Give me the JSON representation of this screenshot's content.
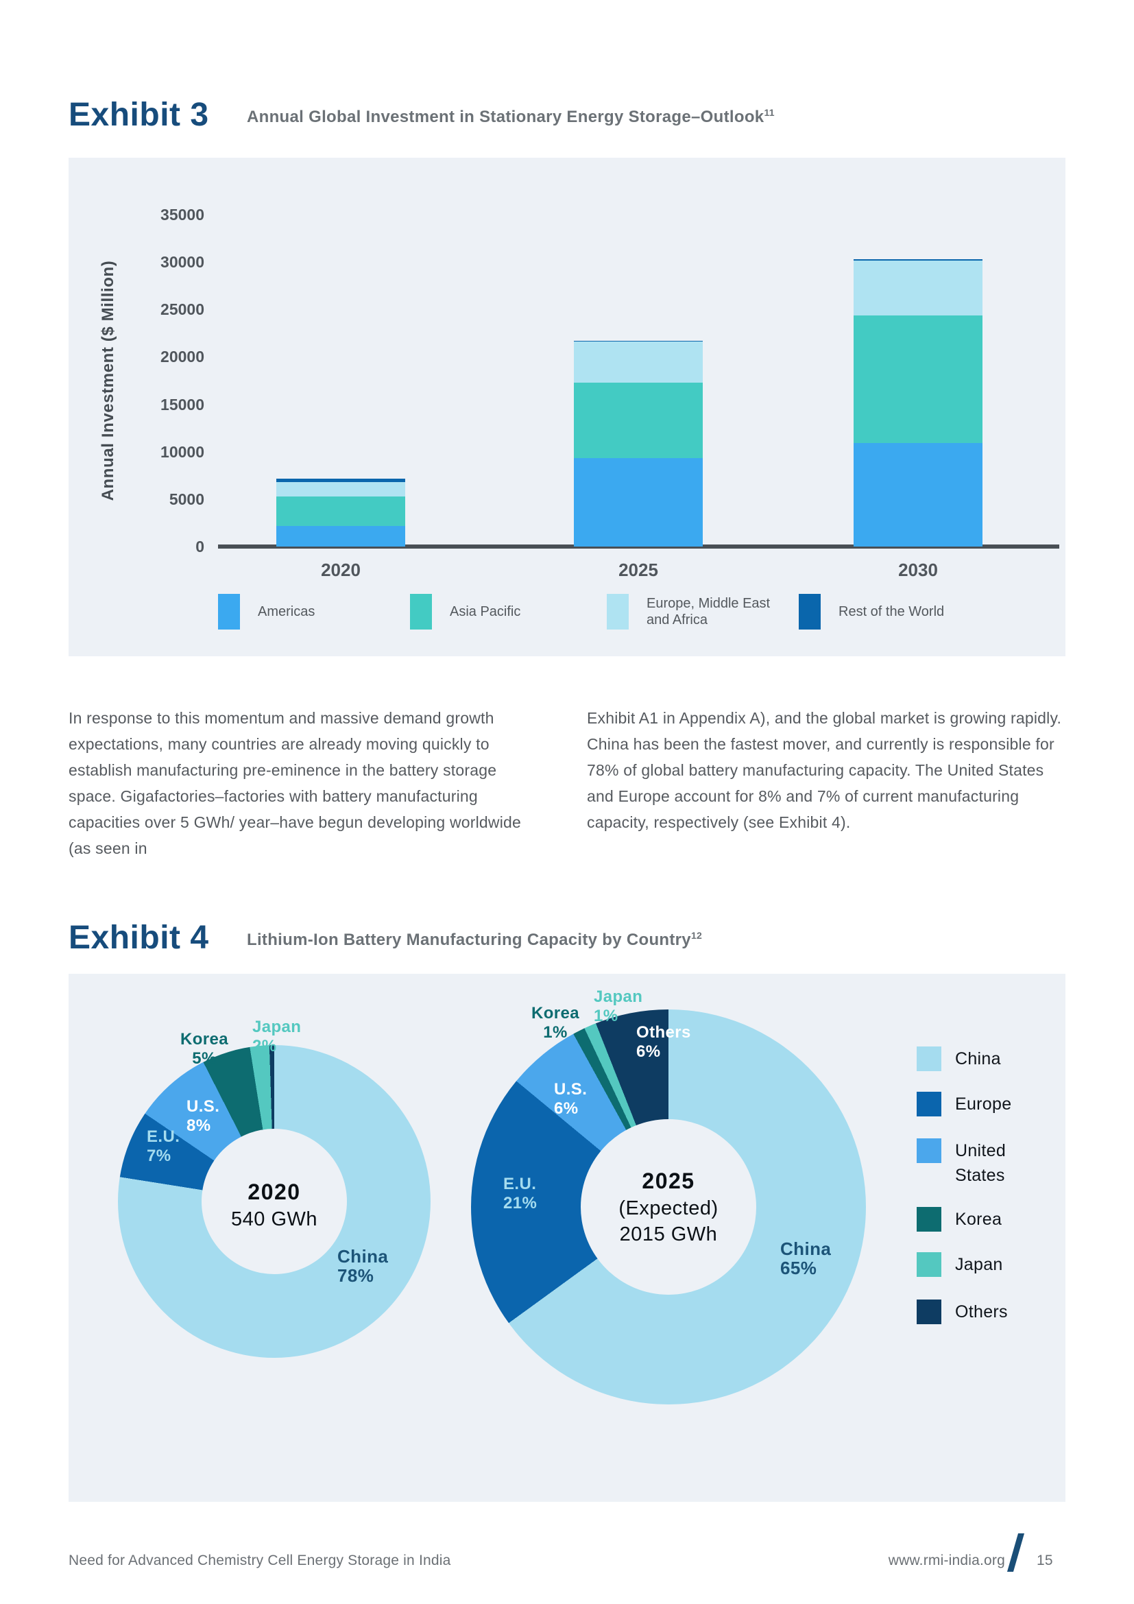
{
  "exhibit3": {
    "label": "Exhibit 3",
    "title": "Annual Global Investment in Stationary Energy Storage–Outlook",
    "footnote_sup": "11"
  },
  "exhibit4": {
    "label": "Exhibit 4",
    "title": "Lithium-Ion Battery Manufacturing Capacity by Country",
    "footnote_sup": "12"
  },
  "body": {
    "col1": "In response to this momentum and massive demand growth expectations, many countries are already moving quickly to establish manufacturing pre-eminence in the battery storage space. Gigafactories–factories with battery manufacturing capacities over 5 GWh/ year–have begun developing worldwide (as seen in",
    "col2": "Exhibit A1 in Appendix A), and the global market is growing rapidly. China has been the fastest mover, and currently is responsible for 78% of global battery manufacturing capacity. The United States and Europe account for 8% and 7% of current manufacturing capacity, respectively (see Exhibit 4)."
  },
  "footer": {
    "left": "Need for Advanced Chemistry Cell Energy Storage in India",
    "site": "www.rmi-india.org",
    "page": "15"
  },
  "chart_data": [
    {
      "type": "bar",
      "stacked": true,
      "title": "Annual Global Investment in Stationary Energy Storage–Outlook",
      "ylabel": "Annual Investment ($ Million)",
      "categories": [
        "2020",
        "2025",
        "2030"
      ],
      "series": [
        {
          "name": "Americas",
          "legend_lines": "Americas",
          "color": "#3BA9F0",
          "values": [
            2150,
            9330,
            10920
          ]
        },
        {
          "name": "Asia Pacific",
          "legend_lines": "Asia Pacific",
          "color": "#43CBC3",
          "values": [
            3150,
            7950,
            13450
          ]
        },
        {
          "name": "Europe, Middle East and Africa",
          "legend_lines": "Europe, Middle East\nand Africa",
          "color": "#AFE3F2",
          "values": [
            1500,
            4320,
            5780
          ]
        },
        {
          "name": "Rest of the World",
          "legend_lines": "Rest of the World",
          "color": "#0A66AC",
          "values": [
            330,
            100,
            150
          ]
        }
      ],
      "ylim": [
        0,
        35000
      ],
      "yticks": [
        0,
        5000,
        10000,
        15000,
        20000,
        25000,
        30000,
        35000
      ],
      "grid": false,
      "legend_position": "bottom"
    },
    {
      "type": "pie",
      "title": "Lithium-Ion Battery Manufacturing Capacity by Country",
      "donuts": [
        {
          "center": [
            "2020",
            "540 GWh"
          ],
          "slices": [
            {
              "label": "China",
              "pct": "78%",
              "value": 77.5,
              "color": "#A5DCEF"
            },
            {
              "label": "E.U.",
              "pct": "7%",
              "value": 7,
              "color": "#0B65AD"
            },
            {
              "label": "U.S.",
              "pct": "8%",
              "value": 8,
              "color": "#4BA7EC"
            },
            {
              "label": "Korea",
              "pct": "5%",
              "value": 5,
              "color": "#0D6C70"
            },
            {
              "label": "Japan",
              "pct": "2%",
              "value": 2,
              "color": "#54C8C0"
            },
            {
              "label": "Others",
              "pct": "",
              "value": 0.5,
              "color": "#0E3C62"
            }
          ]
        },
        {
          "center": [
            "2025",
            "(Expected)",
            "2015 GWh"
          ],
          "slices": [
            {
              "label": "China",
              "pct": "65%",
              "value": 65,
              "color": "#A5DCEF"
            },
            {
              "label": "E.U.",
              "pct": "21%",
              "value": 21,
              "color": "#0B65AD"
            },
            {
              "label": "U.S.",
              "pct": "6%",
              "value": 6,
              "color": "#4BA7EC"
            },
            {
              "label": "Korea",
              "pct": "1%",
              "value": 1,
              "color": "#0D6C70"
            },
            {
              "label": "Japan",
              "pct": "1%",
              "value": 1,
              "color": "#54C8C0"
            },
            {
              "label": "Others",
              "pct": "6%",
              "value": 6,
              "color": "#0E3C62"
            }
          ]
        }
      ],
      "legend": [
        {
          "label": "China",
          "lines": "China",
          "color": "#A5DCEF"
        },
        {
          "label": "Europe",
          "lines": "Europe",
          "color": "#0B65AD"
        },
        {
          "label": "United States",
          "lines": "United\nStates",
          "color": "#4BA7EC"
        },
        {
          "label": "Korea",
          "lines": "Korea",
          "color": "#0D6C70"
        },
        {
          "label": "Japan",
          "lines": "Japan",
          "color": "#54C8C0"
        },
        {
          "label": "Others",
          "lines": "Others",
          "color": "#0E3C62"
        }
      ]
    }
  ]
}
